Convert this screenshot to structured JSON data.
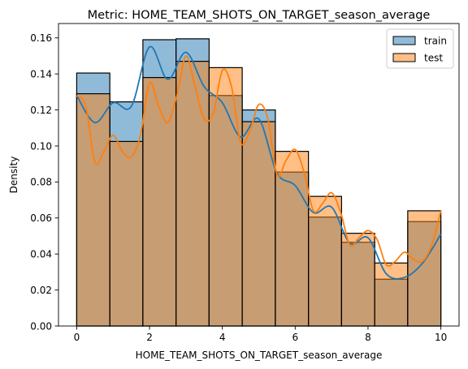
{
  "chart_data": {
    "type": "bar",
    "title": "Metric: HOME_TEAM_SHOTS_ON_TARGET_season_average",
    "xlabel": "HOME_TEAM_SHOTS_ON_TARGET_season_average",
    "ylabel": "Density",
    "xlim": [
      -0.5,
      10.5
    ],
    "ylim": [
      0,
      0.168
    ],
    "x_ticks": [
      "0",
      "2",
      "4",
      "6",
      "8",
      "10"
    ],
    "y_ticks": [
      "0.00",
      "0.02",
      "0.04",
      "0.06",
      "0.08",
      "0.10",
      "0.12",
      "0.14",
      "0.16"
    ],
    "grid": false,
    "legend_position": "top-right",
    "bin_edges": [
      0,
      0.909,
      1.818,
      2.727,
      3.636,
      4.545,
      5.455,
      6.364,
      7.273,
      8.182,
      9.091,
      10
    ],
    "series": [
      {
        "name": "train",
        "color": "#1f77b4",
        "histogram": [
          0.1405,
          0.1245,
          0.159,
          0.1595,
          0.128,
          0.12,
          0.0855,
          0.0605,
          0.0465,
          0.026,
          0.058
        ],
        "kde": {
          "x": [
            0,
            0.5,
            1.0,
            1.5,
            2.0,
            2.5,
            3.0,
            3.5,
            4.0,
            4.5,
            5.0,
            5.5,
            6.0,
            6.5,
            7.0,
            7.5,
            8.0,
            8.5,
            9.0,
            9.5,
            10.0
          ],
          "y": [
            0.128,
            0.113,
            0.124,
            0.122,
            0.155,
            0.137,
            0.152,
            0.133,
            0.124,
            0.105,
            0.115,
            0.085,
            0.078,
            0.063,
            0.066,
            0.046,
            0.049,
            0.029,
            0.027,
            0.035,
            0.051
          ]
        }
      },
      {
        "name": "test",
        "color": "#ff7f0e",
        "histogram": [
          0.129,
          0.1025,
          0.138,
          0.147,
          0.1435,
          0.1135,
          0.097,
          0.072,
          0.0515,
          0.035,
          0.064
        ],
        "kde": {
          "x": [
            0,
            0.25,
            0.5,
            0.75,
            1.0,
            1.25,
            1.5,
            1.75,
            2.0,
            2.25,
            2.5,
            2.75,
            3.0,
            3.25,
            3.5,
            3.75,
            4.0,
            4.25,
            4.5,
            4.75,
            5.0,
            5.25,
            5.5,
            5.75,
            6.0,
            6.25,
            6.5,
            6.75,
            7.0,
            7.25,
            7.5,
            7.75,
            8.0,
            8.25,
            8.5,
            8.75,
            9.0,
            9.25,
            9.5,
            9.75,
            10.0
          ],
          "y": [
            0.128,
            0.122,
            0.091,
            0.097,
            0.106,
            0.097,
            0.094,
            0.106,
            0.135,
            0.122,
            0.113,
            0.128,
            0.15,
            0.133,
            0.115,
            0.118,
            0.142,
            0.133,
            0.102,
            0.108,
            0.123,
            0.115,
            0.084,
            0.092,
            0.098,
            0.085,
            0.064,
            0.068,
            0.074,
            0.063,
            0.045,
            0.049,
            0.053,
            0.048,
            0.034,
            0.036,
            0.041,
            0.037,
            0.036,
            0.045,
            0.064
          ]
        }
      }
    ]
  }
}
